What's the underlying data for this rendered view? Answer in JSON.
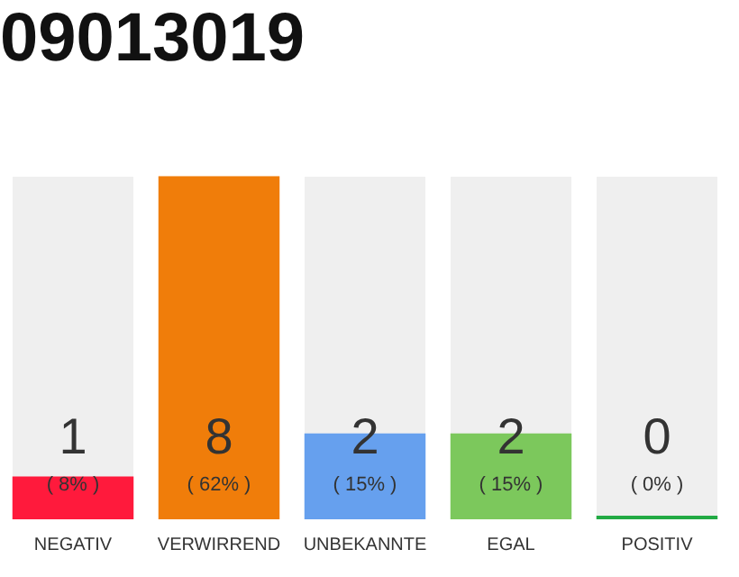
{
  "chart_data": {
    "type": "bar",
    "title": "09013019",
    "categories": [
      "NEGATIV",
      "VERWIRREND",
      "UNBEKANNTE",
      "EGAL",
      "POSITIV"
    ],
    "values": [
      1,
      8,
      2,
      2,
      0
    ],
    "colors": [
      "#ff1a3c",
      "#f07d0a",
      "#66a0ee",
      "#7cc85c",
      "#22aa44"
    ],
    "value_labels": [
      "1",
      "8",
      "2",
      "2",
      "0"
    ],
    "annotations": [
      "( 8% )",
      "( 62% )",
      "( 15% )",
      "( 15% )",
      "( 0% )"
    ],
    "grid": false,
    "legend": false,
    "tick_labels": "x"
  }
}
